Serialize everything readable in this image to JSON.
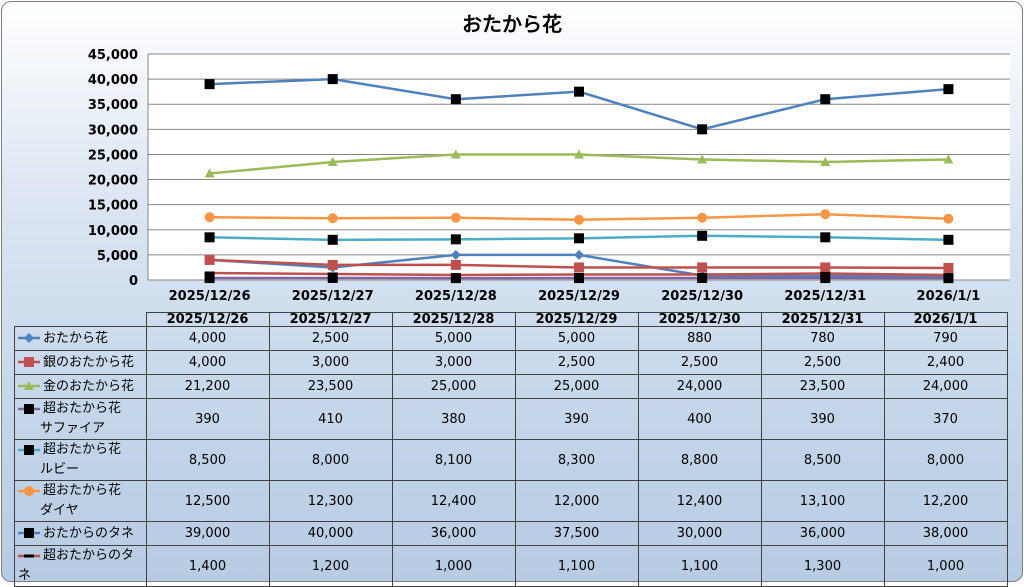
{
  "chart_data": {
    "type": "line",
    "title": "おたから花",
    "categories": [
      "2025/12/26",
      "2025/12/27",
      "2025/12/28",
      "2025/12/29",
      "2025/12/30",
      "2025/12/31",
      "2026/1/1"
    ],
    "ylim": [
      0,
      45000
    ],
    "yticks": [
      "0",
      "5,000",
      "10,000",
      "15,000",
      "20,000",
      "25,000",
      "30,000",
      "35,000",
      "40,000",
      "45,000"
    ],
    "grid": true,
    "legend": "data-table",
    "series": [
      {
        "name": "おたから花",
        "name2": "",
        "color": "#4f81bd",
        "marker": "diamond",
        "markerColor": "#4f81bd",
        "values": [
          4000,
          2500,
          5000,
          5000,
          880,
          780,
          790
        ],
        "labels": [
          "4,000",
          "2,500",
          "5,000",
          "5,000",
          "880",
          "780",
          "790"
        ]
      },
      {
        "name": "銀のおたから花",
        "name2": "",
        "color": "#c0504d",
        "marker": "square",
        "markerColor": "#c0504d",
        "values": [
          4000,
          3000,
          3000,
          2500,
          2500,
          2500,
          2400
        ],
        "labels": [
          "4,000",
          "3,000",
          "3,000",
          "2,500",
          "2,500",
          "2,500",
          "2,400"
        ]
      },
      {
        "name": "金のおたから花",
        "name2": "",
        "color": "#9bbb59",
        "marker": "triangle",
        "markerColor": "#9bbb59",
        "values": [
          21200,
          23500,
          25000,
          25000,
          24000,
          23500,
          24000
        ],
        "labels": [
          "21,200",
          "23,500",
          "25,000",
          "25,000",
          "24,000",
          "23,500",
          "24,000"
        ]
      },
      {
        "name": "超おたから花",
        "name2": "サファイア",
        "color": "#8064a2",
        "marker": "square",
        "markerColor": "#000000",
        "values": [
          390,
          410,
          380,
          390,
          400,
          390,
          370
        ],
        "labels": [
          "390",
          "410",
          "380",
          "390",
          "400",
          "390",
          "370"
        ]
      },
      {
        "name": "超おたから花",
        "name2": "ルビー",
        "color": "#4bacc6",
        "marker": "square",
        "markerColor": "#000000",
        "values": [
          8500,
          8000,
          8100,
          8300,
          8800,
          8500,
          8000
        ],
        "labels": [
          "8,500",
          "8,000",
          "8,100",
          "8,300",
          "8,800",
          "8,500",
          "8,000"
        ]
      },
      {
        "name": "超おたから花",
        "name2": "ダイヤ",
        "color": "#f79646",
        "marker": "circle",
        "markerColor": "#f79646",
        "values": [
          12500,
          12300,
          12400,
          12000,
          12400,
          13100,
          12200
        ],
        "labels": [
          "12,500",
          "12,300",
          "12,400",
          "12,000",
          "12,400",
          "13,100",
          "12,200"
        ]
      },
      {
        "name": "おたからのタネ",
        "name2": "",
        "color": "#4f81bd",
        "marker": "square",
        "markerColor": "#000000",
        "values": [
          39000,
          40000,
          36000,
          37500,
          30000,
          36000,
          38000
        ],
        "labels": [
          "39,000",
          "40,000",
          "36,000",
          "37,500",
          "30,000",
          "36,000",
          "38,000"
        ]
      },
      {
        "name": "超おたからのタネ",
        "name2": "",
        "color": "#c0504d",
        "marker": "dash",
        "markerColor": "#000000",
        "values": [
          1400,
          1200,
          1000,
          1100,
          1100,
          1300,
          1000
        ],
        "labels": [
          "1,400",
          "1,200",
          "1,000",
          "1,100",
          "1,100",
          "1,300",
          "1,000"
        ]
      }
    ]
  }
}
